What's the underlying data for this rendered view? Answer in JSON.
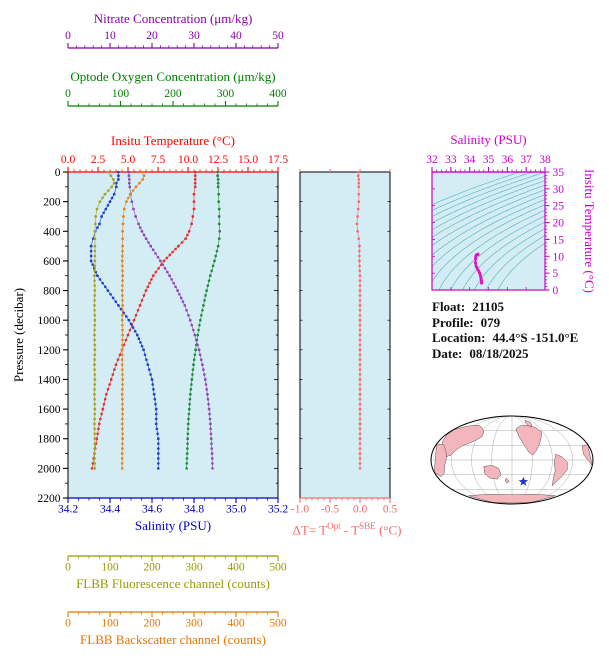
{
  "info": {
    "float_label": "Float:",
    "float_value": "21105",
    "profile_label": "Profile:",
    "profile_value": "079",
    "location_label": "Location:",
    "location_value": "44.4°S -151.0°E",
    "date_label": "Date:",
    "date_value": "08/18/2025"
  },
  "chart_data": [
    {
      "id": "pressure_profiles",
      "type": "line",
      "plot_bg": "#d4edf5",
      "y_axis": {
        "label": "Pressure (decibar)",
        "range": [
          0,
          2200
        ],
        "tick_step": 200,
        "minor_step": 100,
        "color": "#000000"
      },
      "x_axes": [
        {
          "id": "temperature",
          "label": "Insitu Temperature (°C)",
          "color": "#ff0000",
          "range": [
            0,
            17.5
          ],
          "ticks": [
            0,
            2.5,
            5,
            7.5,
            10,
            12.5,
            15,
            17.5
          ],
          "tick_decimals": 1,
          "minor_step": 0.5,
          "side": "top",
          "offset": 0
        },
        {
          "id": "oxygen",
          "label": "Optode Oxygen Concentration (μm/kg)",
          "color": "#008000",
          "range": [
            0,
            400
          ],
          "ticks": [
            0,
            100,
            200,
            300,
            400
          ],
          "minor_step": 20,
          "side": "top",
          "offset": 1
        },
        {
          "id": "nitrate",
          "label": "Nitrate Concentration (μm/kg)",
          "color": "#8800a8",
          "range": [
            0,
            50
          ],
          "ticks": [
            0,
            10,
            20,
            30,
            40,
            50
          ],
          "minor_step": 2,
          "side": "top",
          "offset": 2
        },
        {
          "id": "salinity",
          "label": "Salinity (PSU)",
          "color": "#0000cc",
          "range": [
            34.2,
            35.2
          ],
          "ticks": [
            34.2,
            34.4,
            34.6,
            34.8,
            35.0,
            35.2
          ],
          "tick_decimals": 1,
          "minor_step": 0.05,
          "side": "bottom",
          "offset": 0
        },
        {
          "id": "fluorescence",
          "label": "FLBB Fluorescence channel (counts)",
          "color": "#9a9a00",
          "range": [
            0,
            500
          ],
          "ticks": [
            0,
            100,
            200,
            300,
            400,
            500
          ],
          "minor_step": 25,
          "side": "bottom",
          "offset": 1
        },
        {
          "id": "backscatter",
          "label": "FLBB Backscatter channel (counts)",
          "color": "#e07800",
          "range": [
            0,
            500
          ],
          "ticks": [
            0,
            100,
            200,
            300,
            400,
            500
          ],
          "minor_step": 25,
          "side": "bottom",
          "offset": 2
        }
      ],
      "pressure_levels": [
        0,
        25,
        50,
        75,
        100,
        150,
        200,
        250,
        300,
        350,
        400,
        450,
        500,
        600,
        700,
        800,
        900,
        1000,
        1100,
        1200,
        1300,
        1400,
        1500,
        1600,
        1700,
        1800,
        1900,
        2000
      ],
      "series": [
        {
          "name": "Insitu Temperature",
          "axis": "temperature",
          "color": "#e62e2e",
          "values": [
            10.6,
            10.6,
            10.6,
            10.6,
            10.6,
            10.5,
            10.5,
            10.5,
            10.4,
            10.3,
            10.1,
            9.8,
            9.2,
            8.0,
            7.1,
            6.5,
            6.0,
            5.5,
            5.0,
            4.5,
            4.0,
            3.6,
            3.2,
            2.9,
            2.6,
            2.4,
            2.2,
            2.0
          ]
        },
        {
          "name": "Salinity",
          "axis": "salinity",
          "color": "#2040cc",
          "values": [
            34.44,
            34.44,
            34.44,
            34.43,
            34.43,
            34.42,
            34.4,
            34.38,
            34.36,
            34.35,
            34.33,
            34.32,
            34.31,
            34.31,
            34.34,
            34.39,
            34.44,
            34.49,
            34.53,
            34.56,
            34.58,
            34.6,
            34.61,
            34.62,
            34.62,
            34.63,
            34.63,
            34.63
          ]
        },
        {
          "name": "Optode Oxygen Concentration",
          "axis": "oxygen",
          "color": "#1e8c3a",
          "values": [
            285,
            285,
            286,
            286,
            286,
            287,
            287,
            288,
            288,
            288,
            289,
            288,
            286,
            279,
            271,
            264,
            258,
            252,
            247,
            243,
            239,
            236,
            233,
            231,
            229,
            228,
            227,
            226
          ]
        },
        {
          "name": "Nitrate Concentration",
          "axis": "nitrate",
          "color": "#9146b4",
          "values": [
            14.5,
            14.5,
            14.6,
            14.6,
            14.7,
            14.9,
            15.2,
            15.6,
            16.1,
            16.8,
            17.6,
            18.6,
            19.7,
            22.0,
            24.2,
            26.1,
            27.8,
            29.1,
            30.2,
            31.2,
            32.0,
            32.7,
            33.2,
            33.6,
            33.9,
            34.1,
            34.3,
            34.4
          ]
        },
        {
          "name": "FLBB Fluorescence channel",
          "axis": "fluorescence",
          "color": "#a8a020",
          "values": [
            96,
            102,
            108,
            110,
            104,
            88,
            76,
            69,
            66,
            65,
            64,
            64,
            64,
            64,
            63,
            64,
            63,
            64,
            63,
            64,
            63,
            64,
            63,
            64,
            63,
            64,
            63,
            64
          ]
        },
        {
          "name": "FLBB Backscatter channel",
          "axis": "backscatter",
          "color": "#e8821e",
          "values": [
            176,
            181,
            178,
            170,
            162,
            148,
            139,
            134,
            132,
            131,
            130,
            130,
            130,
            129,
            130,
            129,
            130,
            129,
            130,
            129,
            129,
            130,
            129,
            130,
            129,
            130,
            129,
            129
          ]
        }
      ]
    },
    {
      "id": "delta_t",
      "type": "line",
      "plot_bg": "#d4edf5",
      "x_axis": {
        "label_parts": [
          "ΔT= T",
          "Opt",
          " - T",
          "SBE",
          " (°C)"
        ],
        "color": "#fa6a6a",
        "range": [
          -1.0,
          0.5
        ],
        "ticks": [
          -1.0,
          -0.5,
          0.0,
          0.5
        ],
        "tick_decimals": 1,
        "minor_step": 0.1
      },
      "y_axis": {
        "range": [
          0,
          2200
        ],
        "tick_step": 200
      },
      "pressure_levels": [
        0,
        25,
        50,
        75,
        100,
        150,
        200,
        250,
        300,
        350,
        400,
        450,
        500,
        600,
        700,
        800,
        900,
        1000,
        1100,
        1200,
        1300,
        1400,
        1500,
        1600,
        1700,
        1800,
        1900,
        2000
      ],
      "series": [
        {
          "name": "ΔT",
          "color": "#fa6a6a",
          "values": [
            -0.03,
            -0.03,
            -0.02,
            -0.02,
            -0.02,
            -0.02,
            -0.02,
            -0.03,
            -0.04,
            -0.05,
            -0.04,
            -0.02,
            -0.01,
            -0.01,
            0,
            0,
            0,
            0,
            0,
            0,
            0,
            0,
            0,
            0,
            0,
            0,
            0,
            0
          ]
        }
      ]
    },
    {
      "id": "ts_diagram",
      "type": "scatter",
      "plot_bg": "#d4edf5",
      "x_axis": {
        "label": "Salinity (PSU)",
        "color": "#cc00cc",
        "range": [
          32,
          38
        ],
        "ticks": [
          32,
          33,
          34,
          35,
          36,
          37,
          38
        ],
        "minor_step": 0.25
      },
      "y_axis": {
        "label": "Insitu Temperature (°C)",
        "color": "#cc00cc",
        "range": [
          0,
          35
        ],
        "ticks": [
          0,
          5,
          10,
          15,
          20,
          25,
          30,
          35
        ],
        "minor_step": 1
      },
      "contours": {
        "sigma_values": [
          21,
          21.5,
          22,
          22.5,
          23,
          23.5,
          24,
          24.5,
          25,
          25.5,
          26,
          26.5,
          27,
          27.5,
          28,
          28.5
        ],
        "color": "#3aa6a6"
      },
      "curve_color": "#e611c0",
      "note": "curve is salinity vs temperature from pressure_profiles series"
    }
  ],
  "map": {
    "ocean": "#ffffff",
    "land": "#f4b6bd",
    "outline": "#000000",
    "graticule": "#888888",
    "star_color": "#2233cc",
    "star_location": {
      "lat": -44.4,
      "lon": -151.0
    }
  }
}
